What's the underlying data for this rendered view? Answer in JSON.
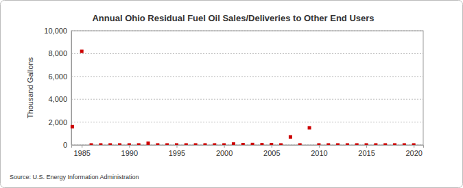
{
  "chart_data": {
    "type": "scatter",
    "title": "Annual Ohio Residual Fuel Oil Sales/Deliveries to Other End Users",
    "y_label": "Thousand Gallons",
    "source": "Source: U.S. Energy Information Administration",
    "x": [
      1984,
      1985,
      1986,
      1987,
      1988,
      1989,
      1990,
      1991,
      1992,
      1993,
      1994,
      1995,
      1996,
      1997,
      1998,
      1999,
      2000,
      2001,
      2002,
      2003,
      2004,
      2005,
      2006,
      2007,
      2008,
      2009,
      2010,
      2011,
      2012,
      2013,
      2014,
      2015,
      2016,
      2017,
      2018,
      2019,
      2020
    ],
    "values": [
      1600,
      8200,
      0,
      0,
      0,
      0,
      0,
      0,
      150,
      0,
      0,
      0,
      0,
      0,
      0,
      0,
      0,
      80,
      30,
      40,
      20,
      30,
      0,
      700,
      0,
      1500,
      0,
      0,
      0,
      0,
      0,
      0,
      0,
      0,
      0,
      0,
      0
    ],
    "color": "#cc0000",
    "marker": "square",
    "xlim": [
      1983.9,
      2021
    ],
    "xticks": [
      1985,
      1990,
      1995,
      2000,
      2005,
      2010,
      2015,
      2020
    ],
    "ylim": [
      0,
      10000
    ],
    "yticks": [
      0,
      {
        "value": 2000,
        "label": "2,000"
      },
      {
        "value": 4000,
        "label": "4,000"
      },
      {
        "value": 6000,
        "label": "6,000"
      },
      {
        "value": 8000,
        "label": "8,000"
      },
      {
        "value": 10000,
        "label": "10,000"
      }
    ],
    "grid": true
  }
}
